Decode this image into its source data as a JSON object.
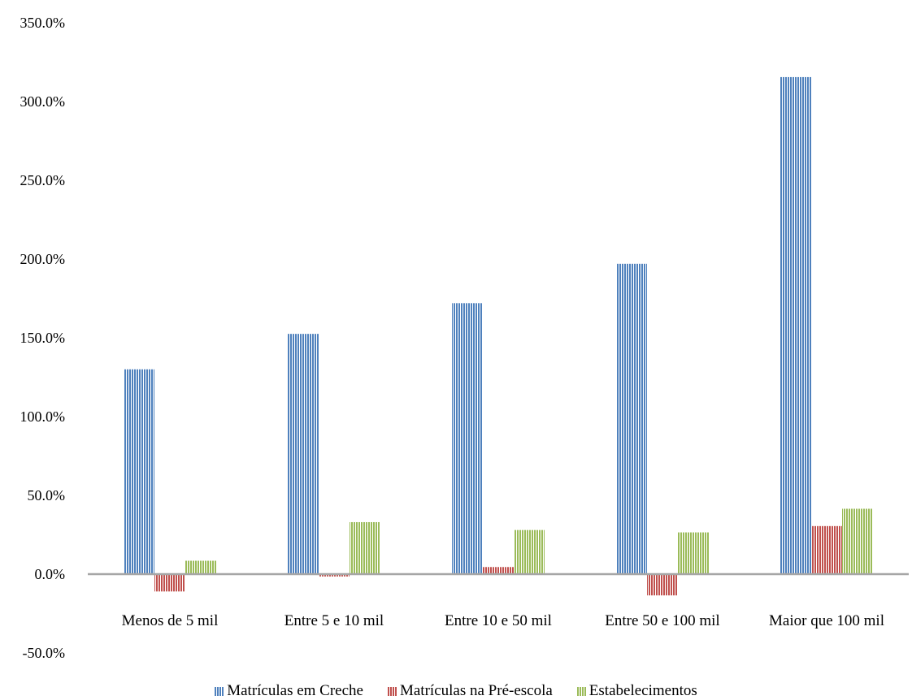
{
  "chart_data": {
    "type": "bar",
    "categories": [
      "Menos de 5 mil",
      "Entre 5 e 10 mil",
      "Entre 10 e 50 mil",
      "Entre 50 e 100 mil",
      "Maior que 100 mil"
    ],
    "series": [
      {
        "name": "Matrículas em Creche",
        "color": "#4F81BD",
        "values": [
          130.0,
          152.5,
          172.0,
          197.0,
          315.5
        ]
      },
      {
        "name": "Matrículas na Pré-escola",
        "color": "#C0504D",
        "values": [
          -11.0,
          -1.5,
          4.5,
          -13.5,
          30.5
        ]
      },
      {
        "name": "Estabelecimentos",
        "color": "#9BBB59",
        "values": [
          8.5,
          33.0,
          28.0,
          26.5,
          41.5
        ]
      }
    ],
    "y_ticks": [
      "350.0%",
      "300.0%",
      "250.0%",
      "200.0%",
      "150.0%",
      "100.0%",
      "50.0%",
      "0.0%",
      "-50.0%"
    ],
    "ylim": [
      -50,
      350
    ],
    "grid": false,
    "legend_position": "bottom"
  }
}
